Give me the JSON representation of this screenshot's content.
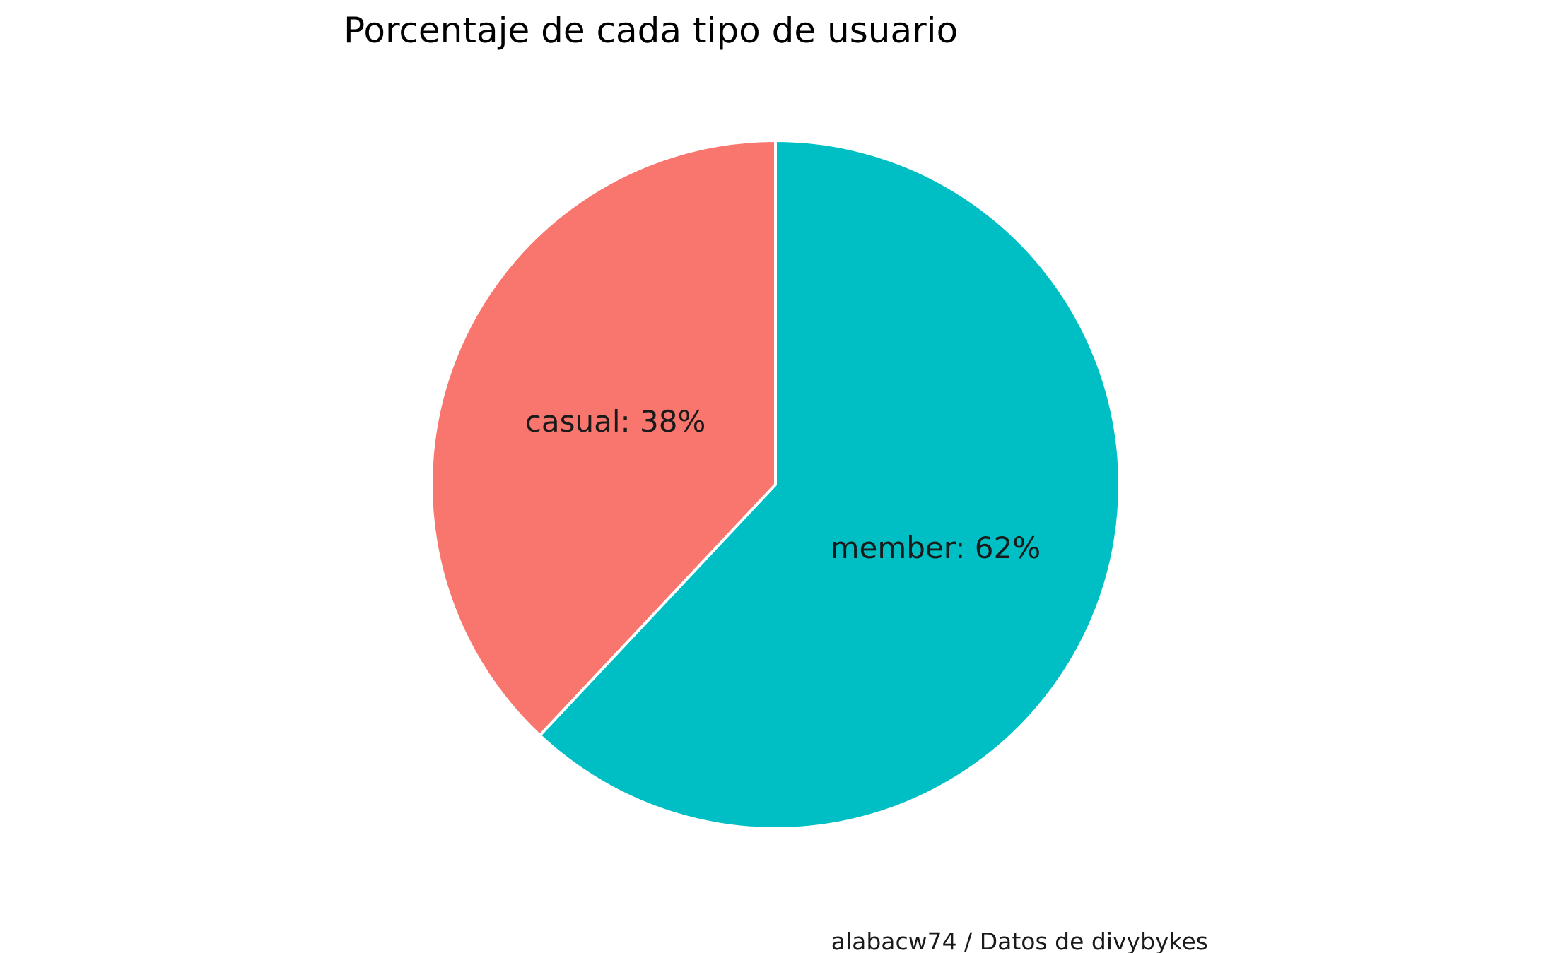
{
  "chart_data": {
    "type": "pie",
    "title": "Porcentaje de cada tipo de usuario",
    "caption": "alabacw74 / Datos de divybykes",
    "slices": [
      {
        "label": "casual",
        "value": 38,
        "display": "casual: 38%",
        "color": "#F8766D"
      },
      {
        "label": "member",
        "value": 62,
        "display": "member: 62%",
        "color": "#00BFC4"
      }
    ],
    "start_angle_deg": 0,
    "direction": "counterclockwise",
    "slice_border_color": "#ffffff",
    "legend": "none"
  }
}
